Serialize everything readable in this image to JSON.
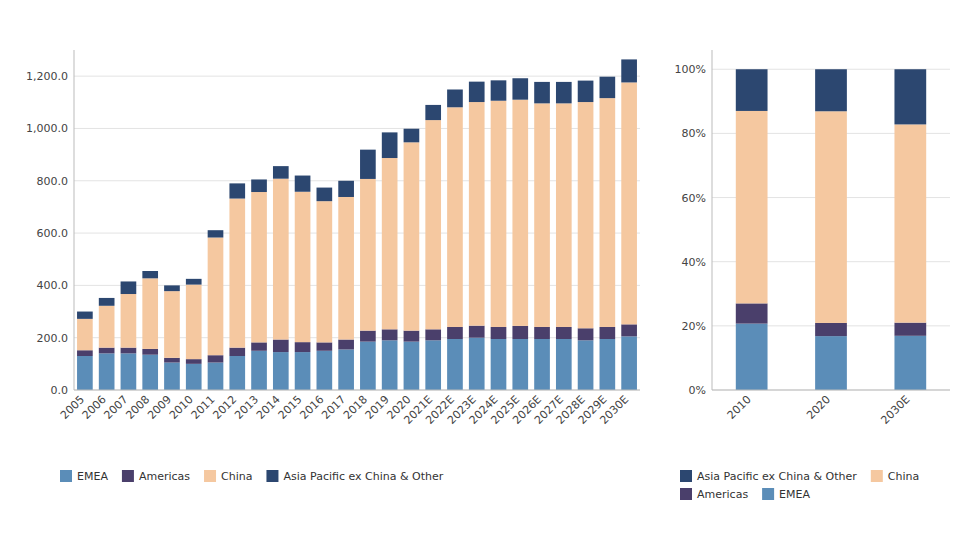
{
  "chart_data": [
    {
      "type": "bar",
      "stacked": true,
      "grid": true,
      "legend": "bottom",
      "categories": [
        "2005",
        "2006",
        "2007",
        "2008",
        "2009",
        "2010",
        "2011",
        "2012",
        "2013",
        "2014",
        "2015",
        "2016",
        "2017",
        "2018",
        "2019",
        "2020",
        "2021E",
        "2022E",
        "2023E",
        "2024E",
        "2025E",
        "2026E",
        "2027E",
        "2028E",
        "2029E",
        "2030E"
      ],
      "series": [
        {
          "name": "EMEA",
          "color": "#5b8db8",
          "values": [
            130,
            140,
            140,
            135,
            105,
            100,
            105,
            130,
            150,
            145,
            145,
            150,
            155,
            185,
            190,
            185,
            190,
            195,
            200,
            195,
            195,
            195,
            195,
            190,
            195,
            205
          ]
        },
        {
          "name": "Americas",
          "color": "#4a3f6b",
          "values": [
            22,
            22,
            22,
            22,
            18,
            18,
            28,
            32,
            32,
            48,
            38,
            32,
            38,
            42,
            42,
            42,
            42,
            46,
            46,
            46,
            50,
            46,
            46,
            46,
            46,
            46
          ]
        },
        {
          "name": "China",
          "color": "#f5c8a0",
          "values": [
            120,
            160,
            205,
            270,
            255,
            285,
            450,
            570,
            575,
            615,
            575,
            540,
            545,
            580,
            655,
            720,
            800,
            840,
            855,
            865,
            865,
            855,
            855,
            865,
            875,
            925
          ]
        },
        {
          "name": "Asia Pacific ex China & Other",
          "color": "#2c4770",
          "values": [
            28,
            30,
            48,
            28,
            22,
            22,
            28,
            58,
            48,
            48,
            62,
            52,
            62,
            112,
            98,
            52,
            58,
            68,
            78,
            78,
            82,
            82,
            82,
            82,
            82,
            88
          ]
        }
      ],
      "ylim": [
        0,
        1300
      ],
      "yticks": [
        {
          "value": 0,
          "label": "0.0"
        },
        {
          "value": 200,
          "label": "200.0"
        },
        {
          "value": 400,
          "label": "400.0"
        },
        {
          "value": 600,
          "label": "600.0"
        },
        {
          "value": 800,
          "label": "800.0"
        },
        {
          "value": 1000,
          "label": "1,000.0"
        },
        {
          "value": 1200,
          "label": "1,200.0"
        }
      ]
    },
    {
      "type": "bar",
      "stacked": true,
      "grid": true,
      "legend": "bottom",
      "categories": [
        "2010",
        "2020",
        "2030E"
      ],
      "series": [
        {
          "name": "EMEA",
          "color": "#5b8db8",
          "values": [
            0.207,
            0.168,
            0.169
          ]
        },
        {
          "name": "Americas",
          "color": "#4a3f6b",
          "values": [
            0.063,
            0.041,
            0.041
          ]
        },
        {
          "name": "China",
          "color": "#f5c8a0",
          "values": [
            0.6,
            0.66,
            0.618
          ]
        },
        {
          "name": "Asia Pacific ex China & Other",
          "color": "#2c4770",
          "values": [
            0.13,
            0.131,
            0.172
          ]
        }
      ],
      "ylim": [
        0,
        1.06
      ],
      "yticks": [
        {
          "value": 0,
          "label": "0%"
        },
        {
          "value": 0.2,
          "label": "20%"
        },
        {
          "value": 0.4,
          "label": "40%"
        },
        {
          "value": 0.6,
          "label": "60%"
        },
        {
          "value": 0.8,
          "label": "80%"
        },
        {
          "value": 1.0,
          "label": "100%"
        }
      ]
    }
  ]
}
